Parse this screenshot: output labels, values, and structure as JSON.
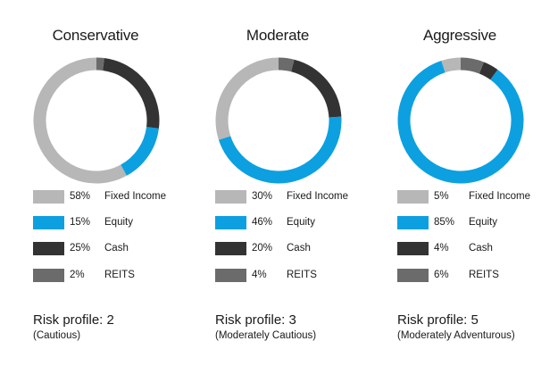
{
  "colors": {
    "fixed_income": "#b7b7b7",
    "equity": "#0ca0e0",
    "cash": "#333333",
    "reits": "#6b6b6b"
  },
  "chart_data": [
    {
      "type": "pie",
      "title": "Conservative",
      "slices": [
        {
          "label": "Fixed Income",
          "value": 58,
          "value_label": "58%",
          "color_key": "fixed_income"
        },
        {
          "label": "Equity",
          "value": 15,
          "value_label": "15%",
          "color_key": "equity"
        },
        {
          "label": "Cash",
          "value": 25,
          "value_label": "25%",
          "color_key": "cash"
        },
        {
          "label": "REITS",
          "value": 2,
          "value_label": "2%",
          "color_key": "reits"
        }
      ],
      "risk_profile": "Risk profile: 2",
      "risk_description": "(Cautious)"
    },
    {
      "type": "pie",
      "title": "Moderate",
      "slices": [
        {
          "label": "Fixed Income",
          "value": 30,
          "value_label": "30%",
          "color_key": "fixed_income"
        },
        {
          "label": "Equity",
          "value": 46,
          "value_label": "46%",
          "color_key": "equity"
        },
        {
          "label": "Cash",
          "value": 20,
          "value_label": "20%",
          "color_key": "cash"
        },
        {
          "label": "REITS",
          "value": 4,
          "value_label": "4%",
          "color_key": "reits"
        }
      ],
      "risk_profile": "Risk profile: 3",
      "risk_description": "(Moderately Cautious)"
    },
    {
      "type": "pie",
      "title": "Aggressive",
      "slices": [
        {
          "label": "Fixed Income",
          "value": 5,
          "value_label": "5%",
          "color_key": "fixed_income"
        },
        {
          "label": "Equity",
          "value": 85,
          "value_label": "85%",
          "color_key": "equity"
        },
        {
          "label": "Cash",
          "value": 4,
          "value_label": "4%",
          "color_key": "cash"
        },
        {
          "label": "REITS",
          "value": 6,
          "value_label": "6%",
          "color_key": "reits"
        }
      ],
      "risk_profile": "Risk profile: 5",
      "risk_description": "(Moderately Adventurous)"
    }
  ]
}
